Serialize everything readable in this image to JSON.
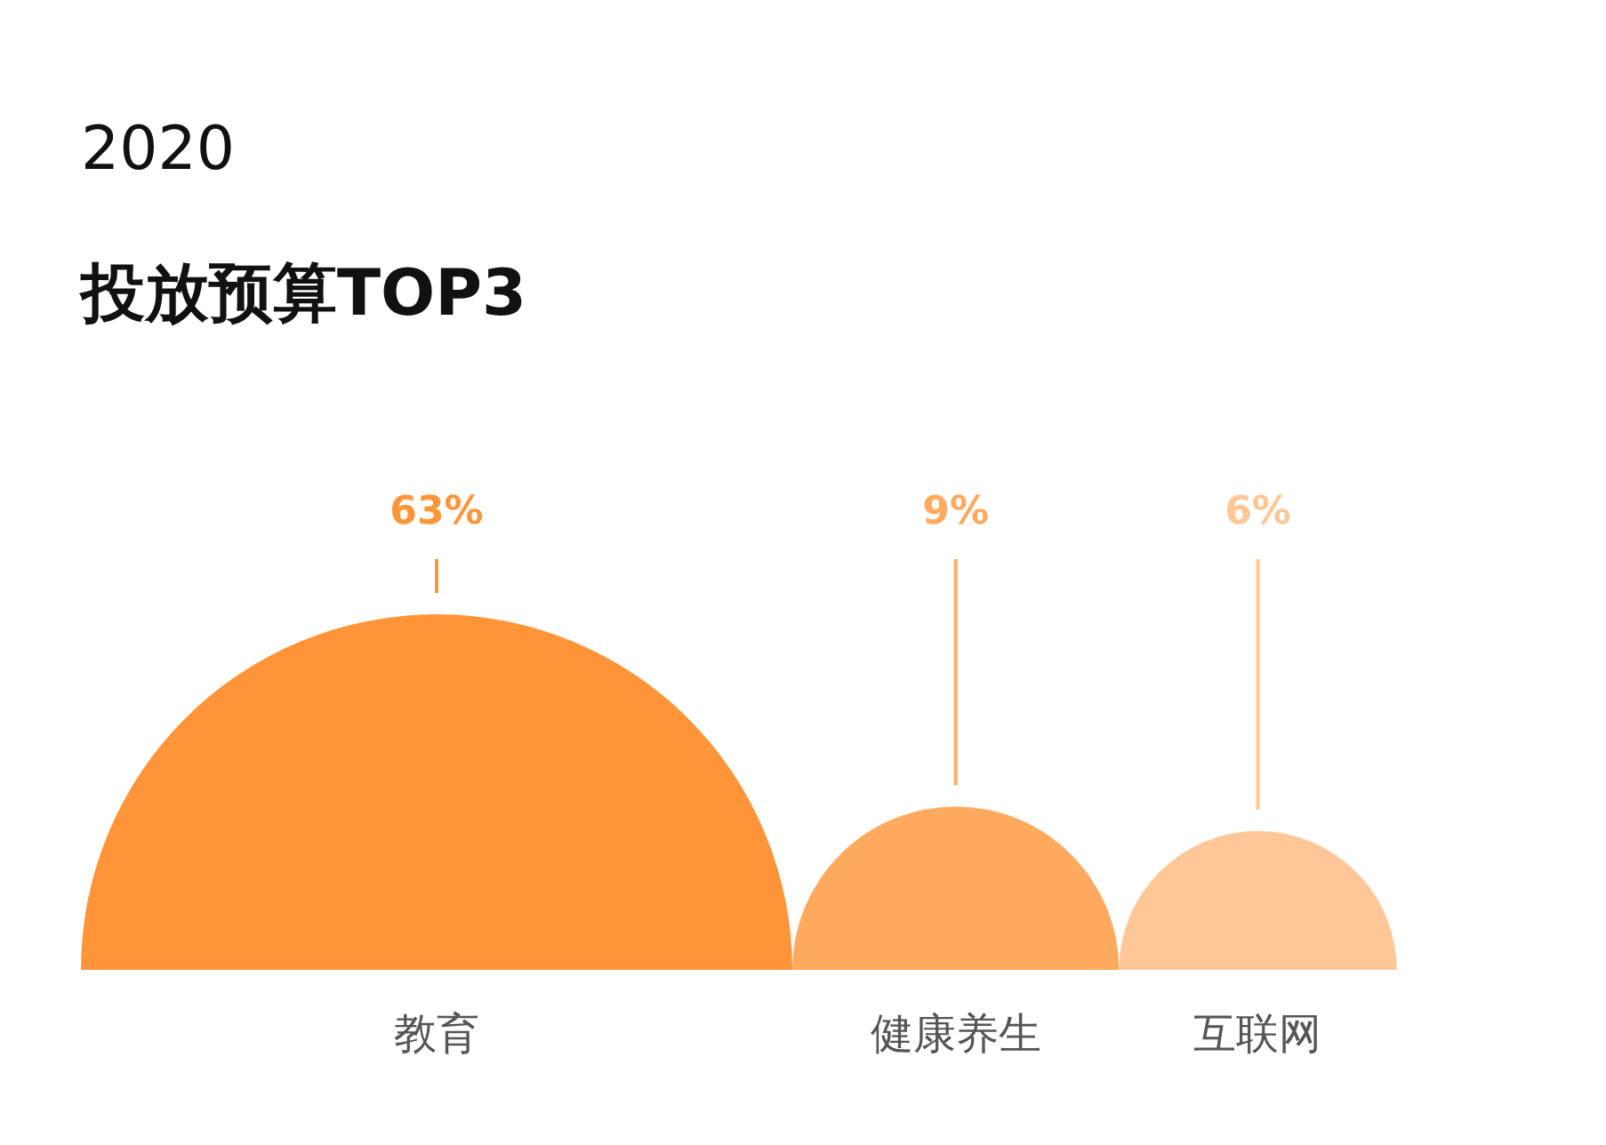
{
  "chart_data": {
    "type": "other",
    "title": "2020",
    "subtitle": "投放预算TOP3",
    "categories": [
      "教育",
      "健康养生",
      "互联网"
    ],
    "values": [
      63,
      9,
      6
    ],
    "colors": [
      "#ff9538",
      "#ffaa5e",
      "#ffc797"
    ],
    "value_labels": [
      "63%",
      "9%",
      "6%"
    ]
  }
}
